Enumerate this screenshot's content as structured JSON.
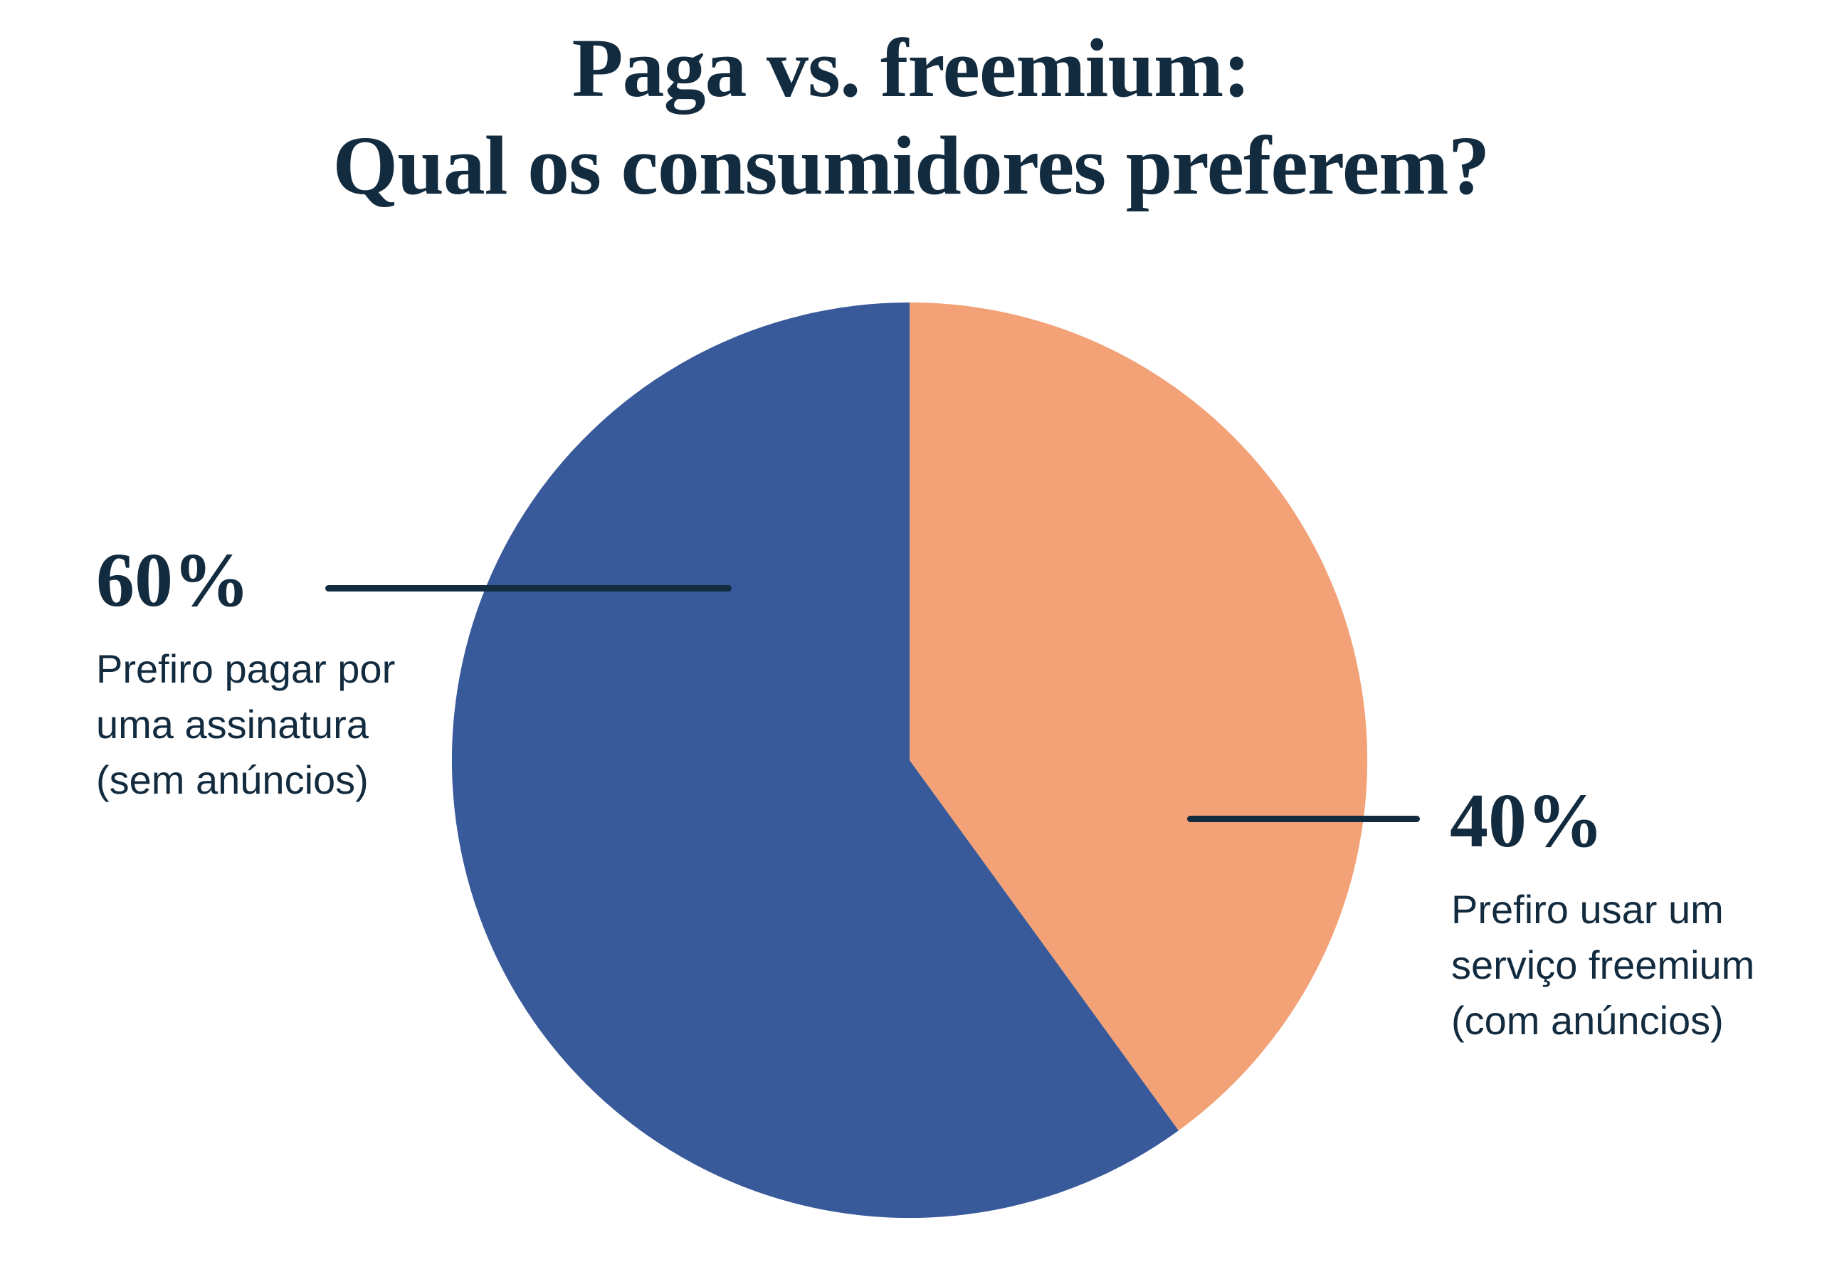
{
  "title": {
    "line1": "Paga vs. freemium:",
    "line2": "Qual os consumidores preferem?"
  },
  "chart_data": {
    "type": "pie",
    "title": "Paga vs. freemium: Qual os consumidores preferem?",
    "direction": "counterclockwise",
    "start_angle_deg": 0,
    "rotation_deg": 0,
    "legend": "none (direct callout labels with leader lines)",
    "slices": [
      {
        "label": "Prefiro pagar por uma assinatura (sem anúncios)",
        "value": 60,
        "unit": "%",
        "color": "#38599A"
      },
      {
        "label": "Prefiro usar um serviço freemium (com anúncios)",
        "value": 40,
        "unit": "%",
        "color": "#F2A276"
      }
    ]
  },
  "labels": {
    "left": {
      "percent": "60%",
      "desc_lines": [
        "Prefiro pagar por",
        "uma assinatura",
        "(sem anúncios)"
      ]
    },
    "right": {
      "percent": "40%",
      "desc_lines": [
        "Prefiro usar um",
        "serviço freemium",
        "(com anúncios)"
      ]
    }
  },
  "colors": {
    "navy": "#122B3F",
    "blue": "#38599A",
    "orange": "#F2A276",
    "background": "#FFFFFF"
  }
}
